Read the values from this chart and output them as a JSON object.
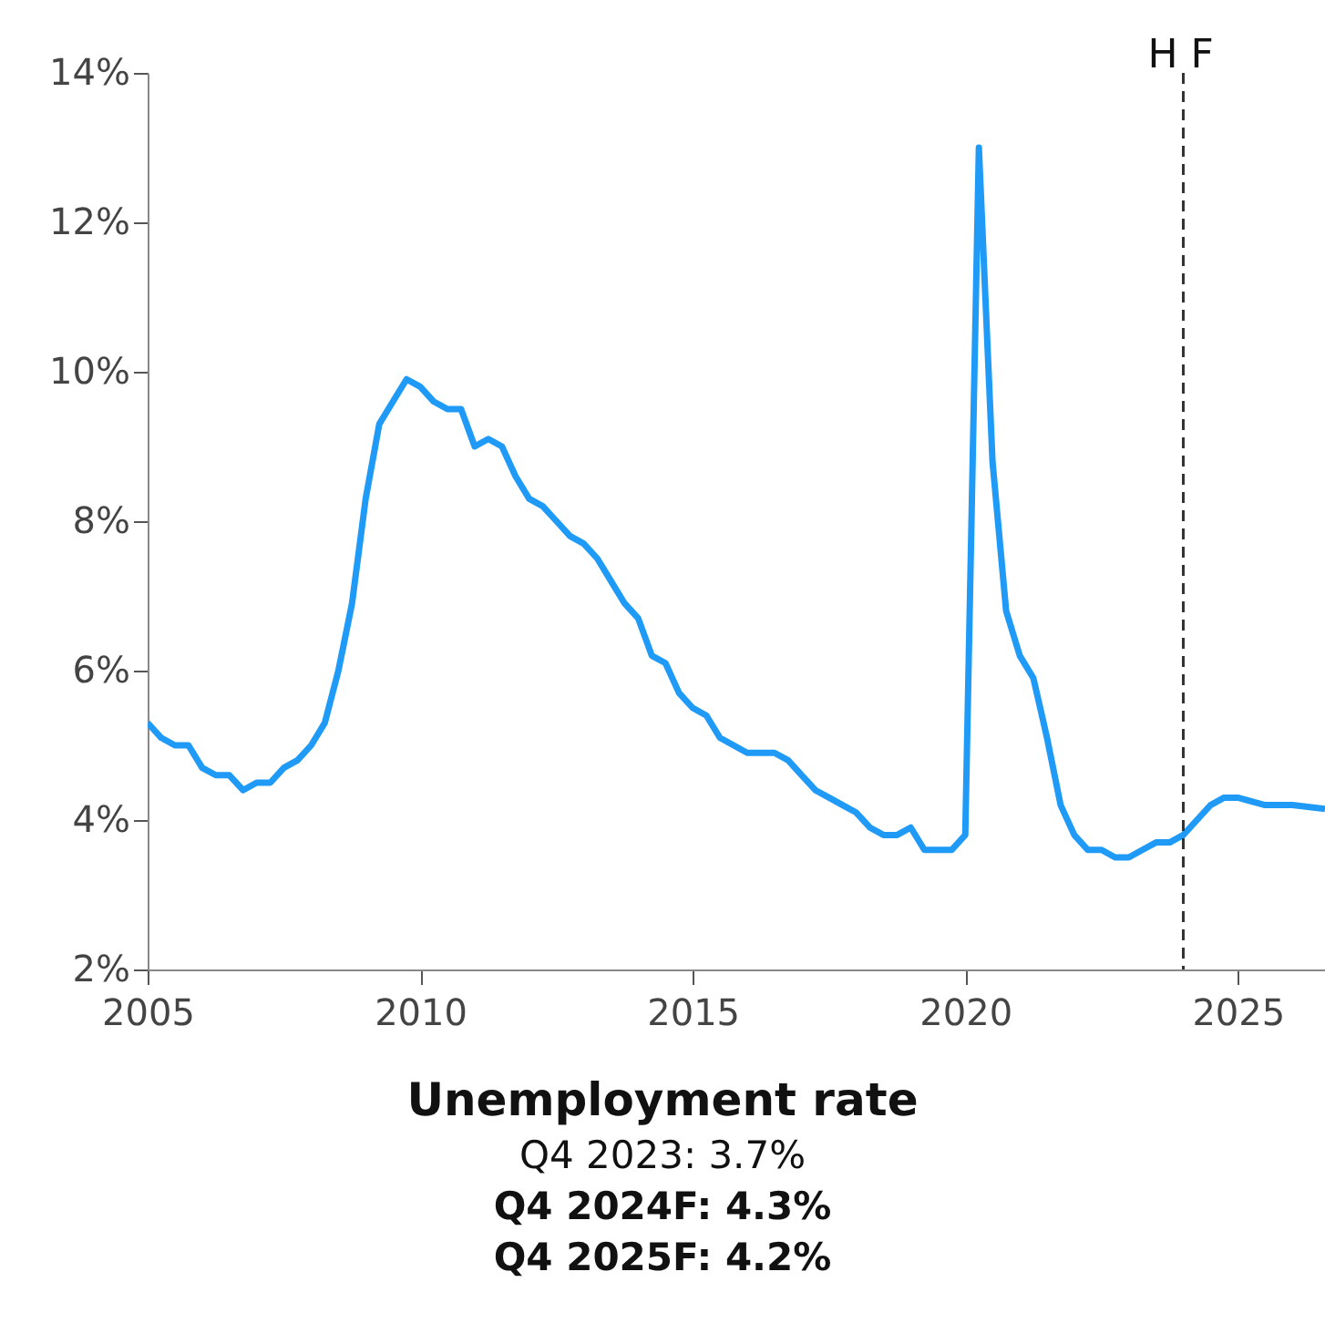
{
  "chart_data": {
    "type": "line",
    "title": "Unemployment rate",
    "subtitle": "Q4 2023: 3.7%",
    "annotations": [
      "Q4 2024F: 4.3%",
      "Q4 2025F: 4.2%",
      {
        "text": "H",
        "x": 2024,
        "y": 14
      },
      {
        "text": "F",
        "x": 2024,
        "y": 14
      }
    ],
    "x": [
      2005,
      2005.25,
      2005.5,
      2005.75,
      2006,
      2006.25,
      2006.5,
      2006.75,
      2007,
      2007.25,
      2007.5,
      2007.75,
      2008,
      2008.25,
      2008.5,
      2008.75,
      2009,
      2009.25,
      2009.5,
      2009.75,
      2010,
      2010.25,
      2010.5,
      2010.75,
      2011,
      2011.25,
      2011.5,
      2011.75,
      2012,
      2012.25,
      2012.5,
      2012.75,
      2013,
      2013.25,
      2013.5,
      2013.75,
      2014,
      2014.25,
      2014.5,
      2014.75,
      2015,
      2015.25,
      2015.5,
      2015.75,
      2016,
      2016.25,
      2016.5,
      2016.75,
      2017,
      2017.25,
      2017.5,
      2017.75,
      2018,
      2018.25,
      2018.5,
      2018.75,
      2019,
      2019.25,
      2019.5,
      2019.75,
      2020,
      2020.25,
      2020.5,
      2020.75,
      2021,
      2021.25,
      2021.5,
      2021.75,
      2022,
      2022.25,
      2022.5,
      2022.75,
      2023,
      2023.25,
      2023.5,
      2023.75,
      2024,
      2024.25,
      2024.5,
      2024.75,
      2025,
      2025.5,
      2026,
      2026.6
    ],
    "series": [
      {
        "color": "#1f9bf7",
        "values": [
          5.3,
          5.1,
          5.0,
          5.0,
          4.7,
          4.6,
          4.6,
          4.4,
          4.5,
          4.5,
          4.7,
          4.8,
          5.0,
          5.3,
          6.0,
          6.9,
          8.3,
          9.3,
          9.6,
          9.9,
          9.8,
          9.6,
          9.5,
          9.5,
          9.0,
          9.1,
          9.0,
          8.6,
          8.3,
          8.2,
          8.0,
          7.8,
          7.7,
          7.5,
          7.2,
          6.9,
          6.7,
          6.2,
          6.1,
          5.7,
          5.5,
          5.4,
          5.1,
          5.0,
          4.9,
          4.9,
          4.9,
          4.8,
          4.6,
          4.4,
          4.3,
          4.2,
          4.1,
          3.9,
          3.8,
          3.8,
          3.9,
          3.6,
          3.6,
          3.6,
          3.8,
          13.0,
          8.8,
          6.8,
          6.2,
          5.9,
          5.1,
          4.2,
          3.8,
          3.6,
          3.6,
          3.5,
          3.5,
          3.6,
          3.7,
          3.7,
          3.8,
          4.0,
          4.2,
          4.3,
          4.3,
          4.2,
          4.2,
          4.15
        ]
      }
    ],
    "xlim": [
      2005,
      2026.6
    ],
    "xticks": [
      2005,
      2010,
      2015,
      2020,
      2025
    ],
    "ylim": [
      2,
      14
    ],
    "yticks": [
      {
        "value": 2,
        "label": "2%"
      },
      {
        "value": 4,
        "label": "4%"
      },
      {
        "value": 6,
        "label": "6%"
      },
      {
        "value": 8,
        "label": "8%"
      },
      {
        "value": 10,
        "label": "10%"
      },
      {
        "value": 12,
        "label": "12%"
      },
      {
        "value": 14,
        "label": "14%"
      }
    ],
    "ref_lines": [
      {
        "axis": "x",
        "value": 2024,
        "color": "#333333",
        "line_style": "dashed"
      }
    ],
    "grid": false,
    "line_style": "solid",
    "marker": "none"
  }
}
